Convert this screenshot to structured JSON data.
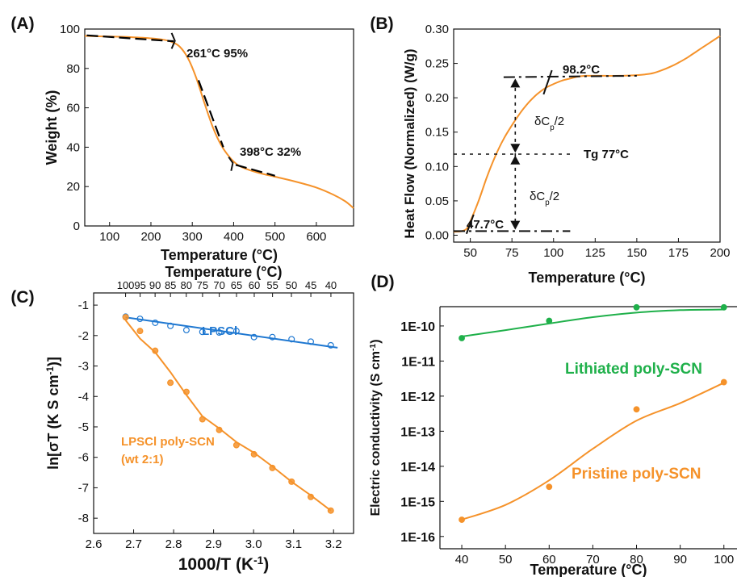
{
  "chart_data": [
    {
      "panel": "(A)",
      "type": "line",
      "xlabel": "Temperature (°C)",
      "ylabel": "Weight (%)",
      "xlim": [
        40,
        690
      ],
      "ylim": [
        0,
        100
      ],
      "xticks": [
        100,
        200,
        300,
        400,
        500,
        600
      ],
      "yticks": [
        0,
        20,
        40,
        60,
        80,
        100
      ],
      "colors": {
        "curve": "#f5922a",
        "tangent": "#000000"
      },
      "x": [
        40,
        100,
        150,
        200,
        230,
        250,
        270,
        290,
        310,
        330,
        350,
        370,
        390,
        410,
        430,
        460,
        500,
        550,
        600,
        640,
        670,
        690
      ],
      "y": [
        96.5,
        96.2,
        95.9,
        95.3,
        94.6,
        93.5,
        91,
        85,
        75,
        62,
        50,
        41,
        35,
        31,
        29,
        27,
        25,
        22.5,
        19.5,
        16,
        12.5,
        9
      ],
      "annotations": [
        {
          "text": "261°C 95%",
          "x": 261,
          "y": 95
        },
        {
          "text": "398°C 32%",
          "x": 398,
          "y": 32
        }
      ]
    },
    {
      "panel": "(B)",
      "type": "line",
      "xlabel": "Temperature (°C)",
      "ylabel": "Heat Flow (Normalized) (W/g)",
      "xlim": [
        40,
        200
      ],
      "ylim": [
        -0.01,
        0.3
      ],
      "xticks": [
        50,
        75,
        100,
        125,
        150,
        175,
        200
      ],
      "yticks": [
        0.0,
        0.05,
        0.1,
        0.15,
        0.2,
        0.25,
        0.3
      ],
      "colors": {
        "curve": "#f5922a",
        "tangent": "#000000"
      },
      "x": [
        40,
        45,
        48,
        50,
        55,
        60,
        65,
        70,
        75,
        80,
        85,
        90,
        95,
        100,
        105,
        110,
        115,
        120,
        130,
        140,
        150,
        155,
        160,
        165,
        170,
        175,
        180,
        185,
        190,
        195,
        200
      ],
      "y": [
        0.005,
        0.006,
        0.01,
        0.02,
        0.05,
        0.085,
        0.115,
        0.14,
        0.16,
        0.178,
        0.193,
        0.205,
        0.214,
        0.22,
        0.225,
        0.228,
        0.231,
        0.232,
        0.232,
        0.232,
        0.233,
        0.234,
        0.236,
        0.24,
        0.245,
        0.251,
        0.258,
        0.266,
        0.274,
        0.282,
        0.29
      ],
      "annotations": [
        {
          "text": "98.2°C",
          "x": 98.2,
          "y": 0.23
        },
        {
          "text": "47.7°C",
          "x": 47.7,
          "y": 0.006
        },
        {
          "text": "Tg 77°C",
          "x": 77,
          "y": 0.118
        },
        {
          "text": "δC",
          "sub": "p",
          "tail": "/2"
        }
      ]
    },
    {
      "panel": "(C)",
      "type": "scatter",
      "xlabel": "1000/T (K",
      "xlabel_sup": "-1",
      "xlabel_tail": ")",
      "ylabel": "ln[σT (K S cm",
      "ylabel_sup": "-1",
      "ylabel_tail": ")]",
      "top_xlabel": "Temperature (°C)",
      "xlim": [
        2.6,
        3.25
      ],
      "ylim": [
        -8.5,
        -0.6
      ],
      "xticks": [
        2.6,
        2.7,
        2.8,
        2.9,
        3.0,
        3.1,
        3.2
      ],
      "yticks": [
        -8,
        -7,
        -6,
        -5,
        -4,
        -3,
        -2,
        -1
      ],
      "top_ticks": [
        100,
        95,
        90,
        85,
        80,
        75,
        70,
        65,
        60,
        55,
        50,
        45,
        40
      ],
      "series": [
        {
          "name": "LPSCl",
          "color": "#1f78d1",
          "x": [
            2.68,
            2.716,
            2.754,
            2.792,
            2.832,
            2.872,
            2.914,
            2.957,
            3.001,
            3.047,
            3.095,
            3.143,
            3.193
          ],
          "y": [
            -1.38,
            -1.45,
            -1.58,
            -1.68,
            -1.82,
            -1.88,
            -1.9,
            -1.85,
            -2.05,
            -2.05,
            -2.12,
            -2.2,
            -2.32
          ],
          "fit": [
            [
              2.68,
              -1.4
            ],
            [
              3.21,
              -2.4
            ]
          ]
        },
        {
          "name": "LPSCl poly-SCN",
          "name2": "(wt 2:1)",
          "color": "#f5922a",
          "x": [
            2.68,
            2.716,
            2.754,
            2.792,
            2.832,
            2.872,
            2.914,
            2.957,
            3.001,
            3.047,
            3.095,
            3.143,
            3.193
          ],
          "y": [
            -1.4,
            -1.85,
            -2.5,
            -3.55,
            -3.85,
            -4.75,
            -5.1,
            -5.6,
            -5.9,
            -6.35,
            -6.8,
            -7.3,
            -7.75
          ],
          "fit": [
            [
              2.68,
              -1.5
            ],
            [
              2.716,
              -2.1
            ],
            [
              2.754,
              -2.55
            ],
            [
              2.792,
              -3.2
            ],
            [
              2.832,
              -3.95
            ],
            [
              2.872,
              -4.65
            ],
            [
              2.914,
              -5.05
            ],
            [
              2.957,
              -5.5
            ],
            [
              3.001,
              -5.85
            ],
            [
              3.047,
              -6.3
            ],
            [
              3.095,
              -6.8
            ],
            [
              3.143,
              -7.25
            ],
            [
              3.193,
              -7.75
            ]
          ]
        }
      ]
    },
    {
      "panel": "(D)",
      "type": "scatter",
      "xlabel": "Temperature (°C)",
      "ylabel": "Electric conductivity (S cm",
      "ylabel_sup": "-1",
      "ylabel_tail": ")",
      "xlim": [
        35,
        103
      ],
      "yscale": "log",
      "ylim_exp": [
        -16.35,
        -9.45
      ],
      "xticks": [
        40,
        50,
        60,
        70,
        80,
        90,
        100
      ],
      "yticks": [
        "1E-16",
        "1E-15",
        "1E-14",
        "1E-13",
        "1E-12",
        "1E-11",
        "1E-10"
      ],
      "series": [
        {
          "name": "Lithiated poly-SCN",
          "color": "#1fb04a",
          "x": [
            40,
            60,
            80,
            100
          ],
          "y": [
            4.5e-11,
            1.4e-10,
            3.4e-10,
            3.4e-10
          ]
        },
        {
          "name": "Pristine poly-SCN",
          "color": "#f5922a",
          "x": [
            40,
            60,
            80,
            100
          ],
          "y": [
            3e-16,
            2.6e-15,
            4.2e-13,
            2.5e-12
          ]
        }
      ]
    }
  ]
}
